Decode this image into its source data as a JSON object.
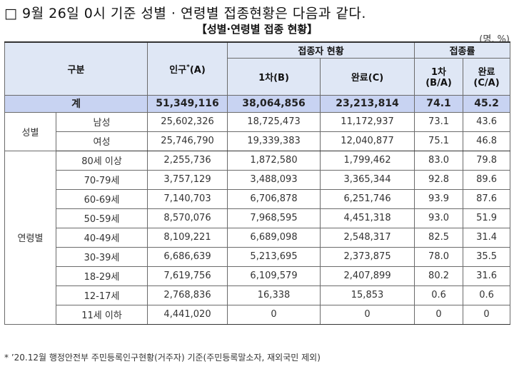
{
  "title": {
    "checkbox": "□",
    "text": "9월 26일 0시 기준 성별 · 연령별 접종현황은 다음과 같다."
  },
  "subtitle": "【성별·연령별 접종 현황】",
  "unit": "(명, %)",
  "headers": {
    "group": "구분",
    "population": "인구",
    "population_mark": "*",
    "population_code": "(A)",
    "vaccination_status": "접종자 현황",
    "first_dose": "1차(B)",
    "completed": "완료(C)",
    "rate": "접종률",
    "rate_first": "1차",
    "rate_first_sub": "(B/A)",
    "rate_completed": "완료",
    "rate_completed_sub": "(C/A)"
  },
  "total": {
    "label": "계",
    "population": "51,349,116",
    "first": "38,064,856",
    "completed": "23,213,814",
    "rate_first": "74.1",
    "rate_completed": "45.2"
  },
  "gender": {
    "label": "성별",
    "rows": [
      {
        "label": "남성",
        "population": "25,602,326",
        "first": "18,725,473",
        "completed": "11,172,937",
        "rate_first": "73.1",
        "rate_completed": "43.6"
      },
      {
        "label": "여성",
        "population": "25,746,790",
        "first": "19,339,383",
        "completed": "12,040,877",
        "rate_first": "75.1",
        "rate_completed": "46.8"
      }
    ]
  },
  "age": {
    "label": "연령별",
    "rows": [
      {
        "label": "80세 이상",
        "population": "2,255,736",
        "first": "1,872,580",
        "completed": "1,799,462",
        "rate_first": "83.0",
        "rate_completed": "79.8"
      },
      {
        "label": "70-79세",
        "population": "3,757,129",
        "first": "3,488,093",
        "completed": "3,365,344",
        "rate_first": "92.8",
        "rate_completed": "89.6"
      },
      {
        "label": "60-69세",
        "population": "7,140,703",
        "first": "6,706,878",
        "completed": "6,251,746",
        "rate_first": "93.9",
        "rate_completed": "87.6"
      },
      {
        "label": "50-59세",
        "population": "8,570,076",
        "first": "7,968,595",
        "completed": "4,451,318",
        "rate_first": "93.0",
        "rate_completed": "51.9"
      },
      {
        "label": "40-49세",
        "population": "8,109,221",
        "first": "6,689,098",
        "completed": "2,548,317",
        "rate_first": "82.5",
        "rate_completed": "31.4"
      },
      {
        "label": "30-39세",
        "population": "6,686,639",
        "first": "5,213,695",
        "completed": "2,373,875",
        "rate_first": "78.0",
        "rate_completed": "35.5"
      },
      {
        "label": "18-29세",
        "population": "7,619,756",
        "first": "6,109,579",
        "completed": "2,407,899",
        "rate_first": "80.2",
        "rate_completed": "31.6"
      },
      {
        "label": "12-17세",
        "population": "2,768,836",
        "first": "16,338",
        "completed": "15,853",
        "rate_first": "0.6",
        "rate_completed": "0.6"
      },
      {
        "label": "11세 이하",
        "population": "4,441,020",
        "first": "0",
        "completed": "0",
        "rate_first": "0",
        "rate_completed": "0"
      }
    ]
  },
  "footnote": "* ’20.12월 행정안전부 주민등록인구현황(거주자) 기준(주민등록말소자, 재외국민 제외)",
  "colors": {
    "header_bg": "#dfe7f5",
    "total_bg": "#c8d3f2",
    "border": "#6b6b6b"
  }
}
